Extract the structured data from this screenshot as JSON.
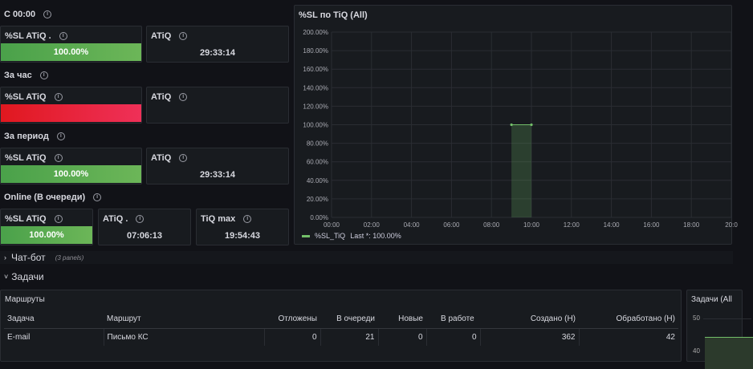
{
  "groups": [
    {
      "label": "С 00:00",
      "sl": {
        "title": "%SL ATiQ .",
        "value": "100.00%",
        "status": "green"
      },
      "atiq": {
        "title": "ATiQ",
        "value": "29:33:14"
      }
    },
    {
      "label": "За час",
      "sl": {
        "title": "%SL ATiQ",
        "value": "",
        "status": "red"
      },
      "atiq": {
        "title": "ATiQ",
        "value": ""
      }
    },
    {
      "label": "За период",
      "sl": {
        "title": "%SL ATiQ",
        "value": "100.00%",
        "status": "green"
      },
      "atiq": {
        "title": "ATiQ",
        "value": "29:33:14"
      }
    }
  ],
  "online": {
    "label": "Online (В очереди)",
    "sl": {
      "title": "%SL ATiQ",
      "value": "100.00%"
    },
    "atiq": {
      "title": "ATiQ .",
      "value": "07:06:13"
    },
    "tiqmax": {
      "title": "TiQ max",
      "value": "19:54:43"
    }
  },
  "colors": {
    "green": "#5ba94f",
    "red": "#e8233a",
    "series": "#73bf69"
  },
  "chart_data": {
    "type": "area",
    "title": "%SL по TiQ (All)",
    "x": [
      "09:00",
      "10:00"
    ],
    "series": [
      {
        "name": "%SL_TiQ",
        "values": [
          100,
          100
        ]
      }
    ],
    "yticks": [
      "0.00%",
      "20.00%",
      "40.00%",
      "60.00%",
      "80.00%",
      "100.00%",
      "120.00%",
      "140.00%",
      "160.00%",
      "180.00%",
      "200.00%"
    ],
    "xticks": [
      "00:00",
      "02:00",
      "04:00",
      "06:00",
      "08:00",
      "10:00",
      "12:00",
      "14:00",
      "16:00",
      "18:00",
      "20:0"
    ],
    "ylim": [
      0,
      200
    ],
    "xlim": [
      "00:00",
      "20:00"
    ],
    "grid": true,
    "legend": "bottom-left",
    "legend_text": "Last *: 100.00%"
  },
  "rows": {
    "chatbot": {
      "label": "Чат-бот",
      "count": "(3 panels)"
    },
    "tasks": {
      "label": "Задачи"
    }
  },
  "routes": {
    "title": "Маршруты",
    "headers": [
      "Задача",
      "Маршрут",
      "Отложены",
      "В очереди",
      "Новые",
      "В работе",
      "Создано (Н)",
      "Обработано (Н)"
    ],
    "rows": [
      [
        "E-mail",
        "Письмо КС",
        "0",
        "21",
        "0",
        "0",
        "362",
        "42"
      ]
    ]
  },
  "tasks_chart": {
    "title": "Задачи (All",
    "yticks": [
      "50",
      "40"
    ]
  }
}
